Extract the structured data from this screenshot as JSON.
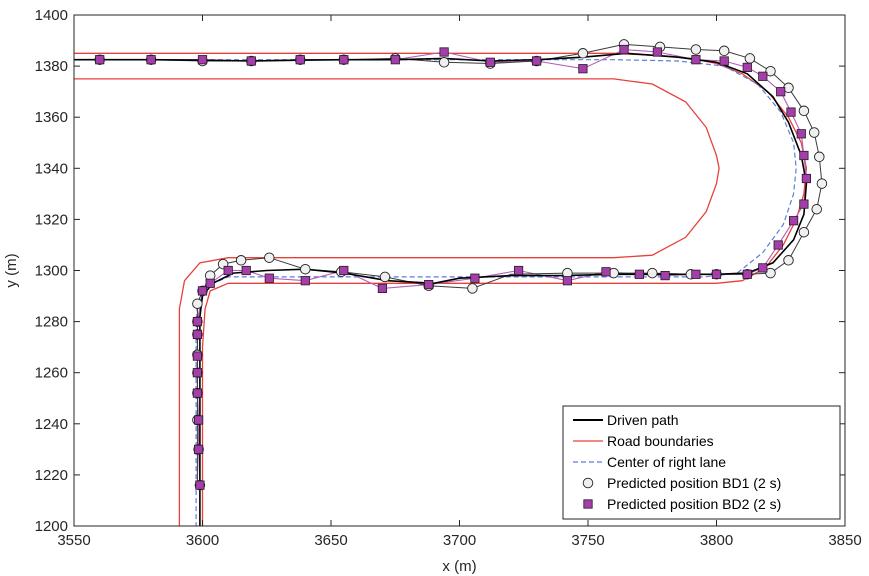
{
  "chart_data": {
    "type": "line",
    "title": "",
    "xlabel": "x (m)",
    "ylabel": "y (m)",
    "xlim": [
      3550,
      3850
    ],
    "ylim": [
      1200,
      1400
    ],
    "xticks": [
      3550,
      3600,
      3650,
      3700,
      3750,
      3800,
      3850
    ],
    "yticks": [
      1200,
      1220,
      1240,
      1260,
      1280,
      1300,
      1320,
      1340,
      1360,
      1380,
      1400
    ],
    "grid": false,
    "legend_position": "bottom-right",
    "colors": {
      "driven": "#000000",
      "road": "#e8413a",
      "center": "#5b7fd6",
      "bd1_fill": "#f0f0f0",
      "bd2_fill": "#a43ea8",
      "bd2_line": "#b45fb8"
    },
    "legend": [
      {
        "label": "Driven path",
        "kind": "line",
        "color": "#000000",
        "dash": ""
      },
      {
        "label": "Road boundaries",
        "kind": "line",
        "color": "#e8413a",
        "dash": ""
      },
      {
        "label": "Center of right lane",
        "kind": "line",
        "color": "#5b7fd6",
        "dash": "5,3"
      },
      {
        "label": "Predicted position BD1 (2 s)",
        "kind": "circle",
        "color": "#f0f0f0"
      },
      {
        "label": "Predicted position BD2 (2 s)",
        "kind": "square",
        "color": "#a43ea8"
      }
    ],
    "series": [
      {
        "name": "Road boundaries",
        "role": "road-outer",
        "points": [
          [
            3550,
            1385
          ],
          [
            3750,
            1385
          ],
          [
            3760,
            1385
          ],
          [
            3770,
            1384.5
          ],
          [
            3780,
            1384
          ],
          [
            3790,
            1383
          ],
          [
            3800,
            1381
          ],
          [
            3810,
            1377
          ],
          [
            3820,
            1370
          ],
          [
            3828,
            1360
          ],
          [
            3833,
            1350
          ],
          [
            3835,
            1340
          ],
          [
            3834,
            1330
          ],
          [
            3831,
            1320
          ],
          [
            3826,
            1310
          ],
          [
            3819,
            1301
          ],
          [
            3810,
            1296
          ],
          [
            3800,
            1295
          ],
          [
            3610,
            1295
          ],
          [
            3603,
            1292
          ],
          [
            3601,
            1285
          ],
          [
            3600,
            1270
          ],
          [
            3600,
            1200
          ]
        ]
      },
      {
        "name": "Road boundaries",
        "role": "road-inner",
        "points": [
          [
            3550,
            1375
          ],
          [
            3760,
            1375
          ],
          [
            3775,
            1373
          ],
          [
            3788,
            1366
          ],
          [
            3796,
            1356
          ],
          [
            3800,
            1345
          ],
          [
            3801,
            1340
          ],
          [
            3800,
            1334
          ],
          [
            3796,
            1323
          ],
          [
            3788,
            1313
          ],
          [
            3775,
            1306
          ],
          [
            3760,
            1305
          ],
          [
            3610,
            1305
          ],
          [
            3599,
            1303
          ],
          [
            3593,
            1296
          ],
          [
            3591,
            1285
          ],
          [
            3591,
            1200
          ]
        ]
      },
      {
        "name": "Center of right lane",
        "points": [
          [
            3550,
            1382.5
          ],
          [
            3760,
            1382.5
          ],
          [
            3785,
            1382
          ],
          [
            3803,
            1380
          ],
          [
            3816,
            1373
          ],
          [
            3825,
            1362
          ],
          [
            3830,
            1350
          ],
          [
            3831,
            1340
          ],
          [
            3830,
            1330
          ],
          [
            3826,
            1318
          ],
          [
            3818,
            1307
          ],
          [
            3808,
            1299
          ],
          [
            3795,
            1297.5
          ],
          [
            3610,
            1297.5
          ],
          [
            3602,
            1294
          ],
          [
            3598,
            1287
          ],
          [
            3597.5,
            1275
          ],
          [
            3597.5,
            1200
          ]
        ]
      },
      {
        "name": "Driven path",
        "points": [
          [
            3550,
            1382.5
          ],
          [
            3560,
            1382.5
          ],
          [
            3580,
            1382.5
          ],
          [
            3600,
            1382.3
          ],
          [
            3619,
            1382
          ],
          [
            3638,
            1382.3
          ],
          [
            3655,
            1382.5
          ],
          [
            3675,
            1382.5
          ],
          [
            3694,
            1383
          ],
          [
            3712,
            1382
          ],
          [
            3730,
            1382.5
          ],
          [
            3748,
            1383.5
          ],
          [
            3765,
            1385
          ],
          [
            3785,
            1383.5
          ],
          [
            3800,
            1381.5
          ],
          [
            3812,
            1377
          ],
          [
            3822,
            1368
          ],
          [
            3828,
            1358
          ],
          [
            3833,
            1345
          ],
          [
            3835,
            1334
          ],
          [
            3834,
            1322
          ],
          [
            3830,
            1312
          ],
          [
            3822,
            1303
          ],
          [
            3812,
            1299
          ],
          [
            3800,
            1298.5
          ],
          [
            3780,
            1298.5
          ],
          [
            3760,
            1298.5
          ],
          [
            3740,
            1298
          ],
          [
            3720,
            1298
          ],
          [
            3700,
            1297
          ],
          [
            3690,
            1295
          ],
          [
            3672,
            1296
          ],
          [
            3655,
            1299
          ],
          [
            3640,
            1300.5
          ],
          [
            3625,
            1300
          ],
          [
            3612,
            1299
          ],
          [
            3604,
            1295
          ],
          [
            3600,
            1290
          ],
          [
            3599,
            1282
          ],
          [
            3599,
            1260
          ],
          [
            3599,
            1230
          ],
          [
            3599,
            1200
          ]
        ]
      },
      {
        "name": "Predicted position BD1 (2 s)",
        "marker": "circle",
        "points": [
          [
            3560,
            1382.5
          ],
          [
            3580,
            1382.5
          ],
          [
            3600,
            1382
          ],
          [
            3619,
            1382
          ],
          [
            3638,
            1382.5
          ],
          [
            3655,
            1382.5
          ],
          [
            3675,
            1383
          ],
          [
            3694,
            1381.5
          ],
          [
            3712,
            1381
          ],
          [
            3730,
            1382
          ],
          [
            3748,
            1385
          ],
          [
            3764,
            1388.5
          ],
          [
            3778,
            1387.5
          ],
          [
            3792,
            1386.5
          ],
          [
            3803,
            1386
          ],
          [
            3813,
            1383
          ],
          [
            3821,
            1378
          ],
          [
            3828,
            1371.5
          ],
          [
            3834,
            1362.5
          ],
          [
            3838,
            1354
          ],
          [
            3840,
            1344.5
          ],
          [
            3841,
            1334
          ],
          [
            3839,
            1324
          ],
          [
            3834,
            1315
          ],
          [
            3828,
            1304
          ],
          [
            3821,
            1299
          ],
          [
            3812,
            1298.5
          ],
          [
            3800,
            1298.5
          ],
          [
            3790,
            1298.5
          ],
          [
            3775,
            1299
          ],
          [
            3760,
            1299
          ],
          [
            3742,
            1299
          ],
          [
            3705,
            1293
          ],
          [
            3688,
            1294
          ],
          [
            3671,
            1297.5
          ],
          [
            3654,
            1299.5
          ],
          [
            3640,
            1300.5
          ],
          [
            3626,
            1305
          ],
          [
            3615,
            1304
          ],
          [
            3608,
            1302.5
          ],
          [
            3603,
            1298
          ],
          [
            3600,
            1292
          ],
          [
            3598,
            1287
          ],
          [
            3598,
            1280
          ],
          [
            3598,
            1275
          ],
          [
            3598,
            1267
          ],
          [
            3598,
            1260
          ],
          [
            3598,
            1252
          ],
          [
            3598,
            1241.5
          ],
          [
            3598.5,
            1230
          ],
          [
            3599,
            1216
          ]
        ],
        "path": [
          [
            3560,
            1382.5
          ],
          [
            3580,
            1382.5
          ],
          [
            3600,
            1382
          ],
          [
            3619,
            1382
          ],
          [
            3638,
            1382.5
          ],
          [
            3655,
            1382.5
          ],
          [
            3675,
            1383
          ],
          [
            3694,
            1381.5
          ],
          [
            3712,
            1381
          ],
          [
            3730,
            1382
          ],
          [
            3748,
            1385
          ],
          [
            3764,
            1388.5
          ],
          [
            3778,
            1387.5
          ],
          [
            3792,
            1386.5
          ],
          [
            3803,
            1386
          ],
          [
            3813,
            1383
          ],
          [
            3821,
            1378
          ],
          [
            3828,
            1371.5
          ],
          [
            3834,
            1362.5
          ],
          [
            3838,
            1354
          ],
          [
            3840,
            1344.5
          ],
          [
            3841,
            1334
          ],
          [
            3839,
            1324
          ],
          [
            3834,
            1315
          ],
          [
            3828,
            1304
          ],
          [
            3821,
            1299
          ],
          [
            3812,
            1298.5
          ],
          [
            3800,
            1298.5
          ],
          [
            3790,
            1298.5
          ],
          [
            3775,
            1299
          ],
          [
            3760,
            1299
          ],
          [
            3742,
            1299
          ],
          [
            3720,
            1298.5
          ],
          [
            3705,
            1293
          ],
          [
            3688,
            1294
          ],
          [
            3671,
            1297.5
          ],
          [
            3654,
            1299.5
          ],
          [
            3640,
            1300.5
          ],
          [
            3626,
            1305
          ],
          [
            3615,
            1304
          ],
          [
            3608,
            1302.5
          ],
          [
            3603,
            1298
          ],
          [
            3600,
            1292
          ],
          [
            3598,
            1287
          ],
          [
            3598,
            1280
          ],
          [
            3598,
            1216
          ]
        ]
      },
      {
        "name": "Predicted position BD2 (2 s)",
        "marker": "square",
        "points": [
          [
            3560,
            1382.5
          ],
          [
            3580,
            1382.5
          ],
          [
            3600,
            1382.5
          ],
          [
            3619,
            1382
          ],
          [
            3638,
            1382.5
          ],
          [
            3655,
            1382.5
          ],
          [
            3675,
            1382.5
          ],
          [
            3694,
            1385.5
          ],
          [
            3712,
            1381.5
          ],
          [
            3730,
            1382
          ],
          [
            3748,
            1379
          ],
          [
            3764,
            1386.5
          ],
          [
            3777,
            1385.5
          ],
          [
            3792,
            1382.5
          ],
          [
            3803,
            1382
          ],
          [
            3812,
            1379.5
          ],
          [
            3818,
            1376
          ],
          [
            3825,
            1370
          ],
          [
            3829,
            1362
          ],
          [
            3833,
            1353.5
          ],
          [
            3834,
            1345
          ],
          [
            3835,
            1336
          ],
          [
            3834,
            1326
          ],
          [
            3830,
            1319.5
          ],
          [
            3824,
            1310
          ],
          [
            3818,
            1301
          ],
          [
            3812,
            1298.5
          ],
          [
            3800,
            1298.5
          ],
          [
            3792,
            1298.5
          ],
          [
            3780,
            1298
          ],
          [
            3770,
            1298.5
          ],
          [
            3757,
            1299.5
          ],
          [
            3742,
            1296
          ],
          [
            3723,
            1300
          ],
          [
            3706,
            1297
          ],
          [
            3688,
            1294.5
          ],
          [
            3670,
            1293
          ],
          [
            3655,
            1300
          ],
          [
            3640,
            1296
          ],
          [
            3626,
            1297
          ],
          [
            3617,
            1300
          ],
          [
            3610,
            1300
          ],
          [
            3603,
            1295
          ],
          [
            3600,
            1292
          ],
          [
            3598,
            1280
          ],
          [
            3598,
            1275
          ],
          [
            3598,
            1266.5
          ],
          [
            3598,
            1260
          ],
          [
            3598,
            1252
          ],
          [
            3598.5,
            1241.5
          ],
          [
            3598.5,
            1230
          ],
          [
            3599,
            1216
          ]
        ]
      }
    ]
  }
}
